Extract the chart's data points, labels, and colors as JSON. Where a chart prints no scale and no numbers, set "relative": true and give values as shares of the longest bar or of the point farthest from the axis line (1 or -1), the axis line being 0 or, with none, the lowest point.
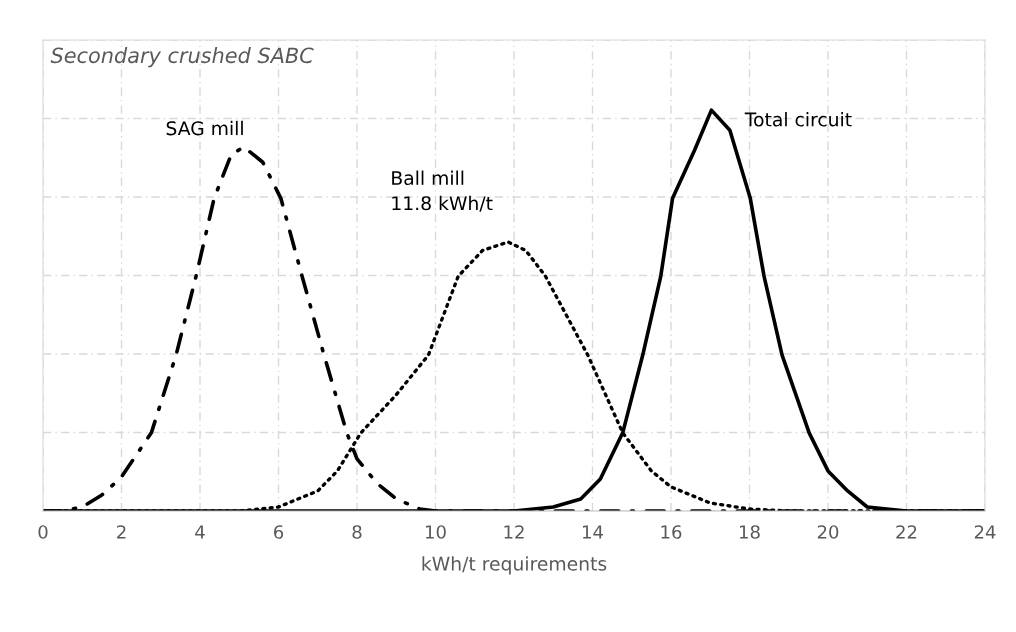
{
  "chart_data": {
    "type": "line",
    "title": "Secondary crushed SABC",
    "xlabel": "kWh/t requirements",
    "relative": true,
    "xlim": [
      0,
      24
    ],
    "xticks": [
      0,
      2,
      4,
      6,
      8,
      10,
      12,
      14,
      16,
      18,
      20,
      22,
      24
    ],
    "grid": true,
    "series": [
      {
        "name": "SAG mill",
        "color": "#000000",
        "line_style": "dashdot",
        "x": [
          0,
          0.5,
          1,
          1.5,
          2,
          2.76,
          3.39,
          3.9,
          4.36,
          4.8,
          5.12,
          5.6,
          6.06,
          6.6,
          7.16,
          7.74,
          8,
          8.5,
          9,
          9.6,
          10,
          24
        ],
        "values": [
          0,
          0,
          0.01,
          0.04,
          0.085,
          0.195,
          0.389,
          0.586,
          0.78,
          0.89,
          0.908,
          0.87,
          0.78,
          0.586,
          0.389,
          0.195,
          0.13,
          0.07,
          0.03,
          0.005,
          0,
          0
        ]
      },
      {
        "name": "Ball mill\n11.8 kWh/t",
        "color": "#000000",
        "line_style": "dotted",
        "x": [
          0,
          5,
          6,
          7,
          7.5,
          8.1,
          9,
          9.82,
          10.58,
          11.2,
          11.85,
          12.3,
          12.8,
          13.88,
          14.77,
          15.5,
          16,
          17,
          18,
          19,
          24
        ],
        "values": [
          0,
          0,
          0.01,
          0.05,
          0.1,
          0.195,
          0.29,
          0.389,
          0.586,
          0.65,
          0.671,
          0.65,
          0.586,
          0.389,
          0.195,
          0.1,
          0.06,
          0.02,
          0.005,
          0,
          0
        ]
      },
      {
        "name": "Total circuit",
        "color": "#000000",
        "line_style": "solid",
        "x": [
          0,
          12,
          13,
          13.7,
          14.2,
          14.77,
          15.28,
          15.74,
          16.04,
          16.6,
          17.03,
          17.5,
          18.02,
          18.37,
          18.83,
          19.52,
          20,
          20.5,
          21,
          22,
          24
        ],
        "values": [
          0,
          0,
          0.01,
          0.03,
          0.08,
          0.195,
          0.389,
          0.586,
          0.78,
          0.9,
          1,
          0.95,
          0.78,
          0.586,
          0.389,
          0.195,
          0.1,
          0.05,
          0.01,
          0,
          0
        ]
      }
    ]
  }
}
